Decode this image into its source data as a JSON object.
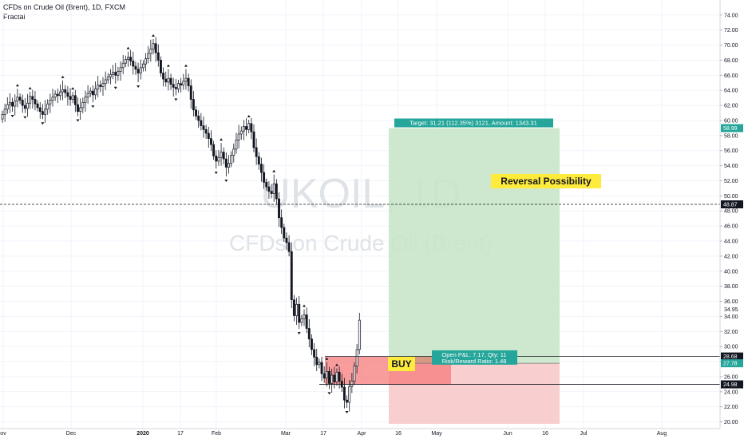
{
  "header": {
    "symbol": "CFDs on Crude Oil (Brent), 1D, FXCM",
    "indicator": "Fractal"
  },
  "watermark": {
    "ticker": "UKOIL, 1D",
    "name": "CFDs on Crude Oil (Brent)"
  },
  "chart_data": {
    "type": "candlestick",
    "y_ticks": [
      20,
      22,
      24,
      26,
      28,
      30,
      32,
      34,
      36,
      38,
      40,
      42,
      44,
      46,
      48,
      50,
      52,
      54,
      56,
      58,
      60,
      62,
      64,
      66,
      68,
      70,
      72,
      74
    ],
    "x_ticks": [
      "ov",
      "Dec",
      "2020",
      "17",
      "Feb",
      "Mar",
      "17",
      "Apr",
      "16",
      "May",
      "Jun",
      "16",
      "Jul",
      "Aug"
    ],
    "price_badges": [
      {
        "label": "58.99",
        "value": 58.99,
        "color": "#26a69a"
      },
      {
        "label": "48.87",
        "value": 48.87,
        "color": "#131722"
      },
      {
        "label": "28.68",
        "value": 28.68,
        "color": "#131722"
      },
      {
        "label": "27.78",
        "value": 27.78,
        "color": "#26a69a"
      },
      {
        "label": "24.98",
        "value": 24.98,
        "color": "#131722"
      }
    ],
    "extra_tick": "34.95",
    "dashed_line": 48.87,
    "position": {
      "entry": 27.78,
      "target": 58.99,
      "stop": 24.98,
      "target_label": "Target: 31.21 (112.35%) 3121, Amount: 1343.31",
      "pnl_label": "Open P&L: 7.17, Qty: 11",
      "rr_label": "Risk/Reward Ratio: 1.48",
      "buy_label": "BUY",
      "profit_color": "#c8e6c9",
      "loss_color": "#f7c9c9",
      "accent": "#26a69a"
    },
    "annotation": {
      "text": "Reversal Possibility",
      "bg": "#ffeb3b"
    },
    "colors": {
      "up": "#131722",
      "down": "#131722",
      "grid": "#f0f3fa"
    },
    "closes": [
      60.8,
      61.5,
      62.1,
      62.4,
      61.9,
      62.6,
      63.1,
      62.7,
      62.0,
      61.6,
      62.3,
      63.2,
      62.8,
      62.2,
      61.7,
      61.2,
      60.8,
      61.5,
      62.2,
      62.7,
      63.1,
      63.5,
      63.3,
      63.8,
      64.1,
      63.7,
      63.2,
      62.8,
      63.3,
      62.1,
      61.2,
      61.7,
      62.4,
      63.1,
      63.6,
      63.9,
      63.4,
      64.2,
      64.7,
      64.5,
      64.9,
      65.4,
      65.8,
      66.1,
      66.4,
      66.0,
      66.5,
      67.0,
      67.6,
      68.1,
      68.4,
      67.9,
      67.2,
      66.8,
      66.3,
      67.0,
      67.5,
      68.2,
      68.9,
      69.5,
      70.2,
      69.0,
      68.0,
      66.3,
      65.5,
      65.1,
      65.6,
      64.8,
      64.4,
      64.2,
      64.9,
      64.7,
      65.2,
      65.6,
      64.6,
      62.8,
      61.4,
      60.6,
      60.0,
      59.3,
      58.8,
      58.3,
      57.6,
      56.8,
      55.3,
      54.6,
      55.1,
      55.8,
      54.9,
      53.8,
      54.3,
      55.4,
      56.2,
      57.4,
      58.2,
      58.6,
      59.2,
      58.8,
      59.6,
      58.5,
      56.4,
      55.2,
      54.2,
      53.1,
      51.8,
      51.2,
      50.6,
      50.3,
      51.6,
      49.6,
      47.1,
      45.8,
      44.4,
      43.8,
      42.6,
      36.2,
      34.1,
      35.6,
      33.2,
      33.7,
      34.2,
      32.4,
      31.0,
      29.6,
      28.6,
      27.6,
      27.9,
      26.4,
      25.8,
      26.7,
      25.1,
      26.2,
      25.3,
      26.6,
      25.4,
      24.6,
      22.9,
      22.6,
      24.7,
      25.4,
      27.4,
      29.6,
      33.5
    ]
  }
}
